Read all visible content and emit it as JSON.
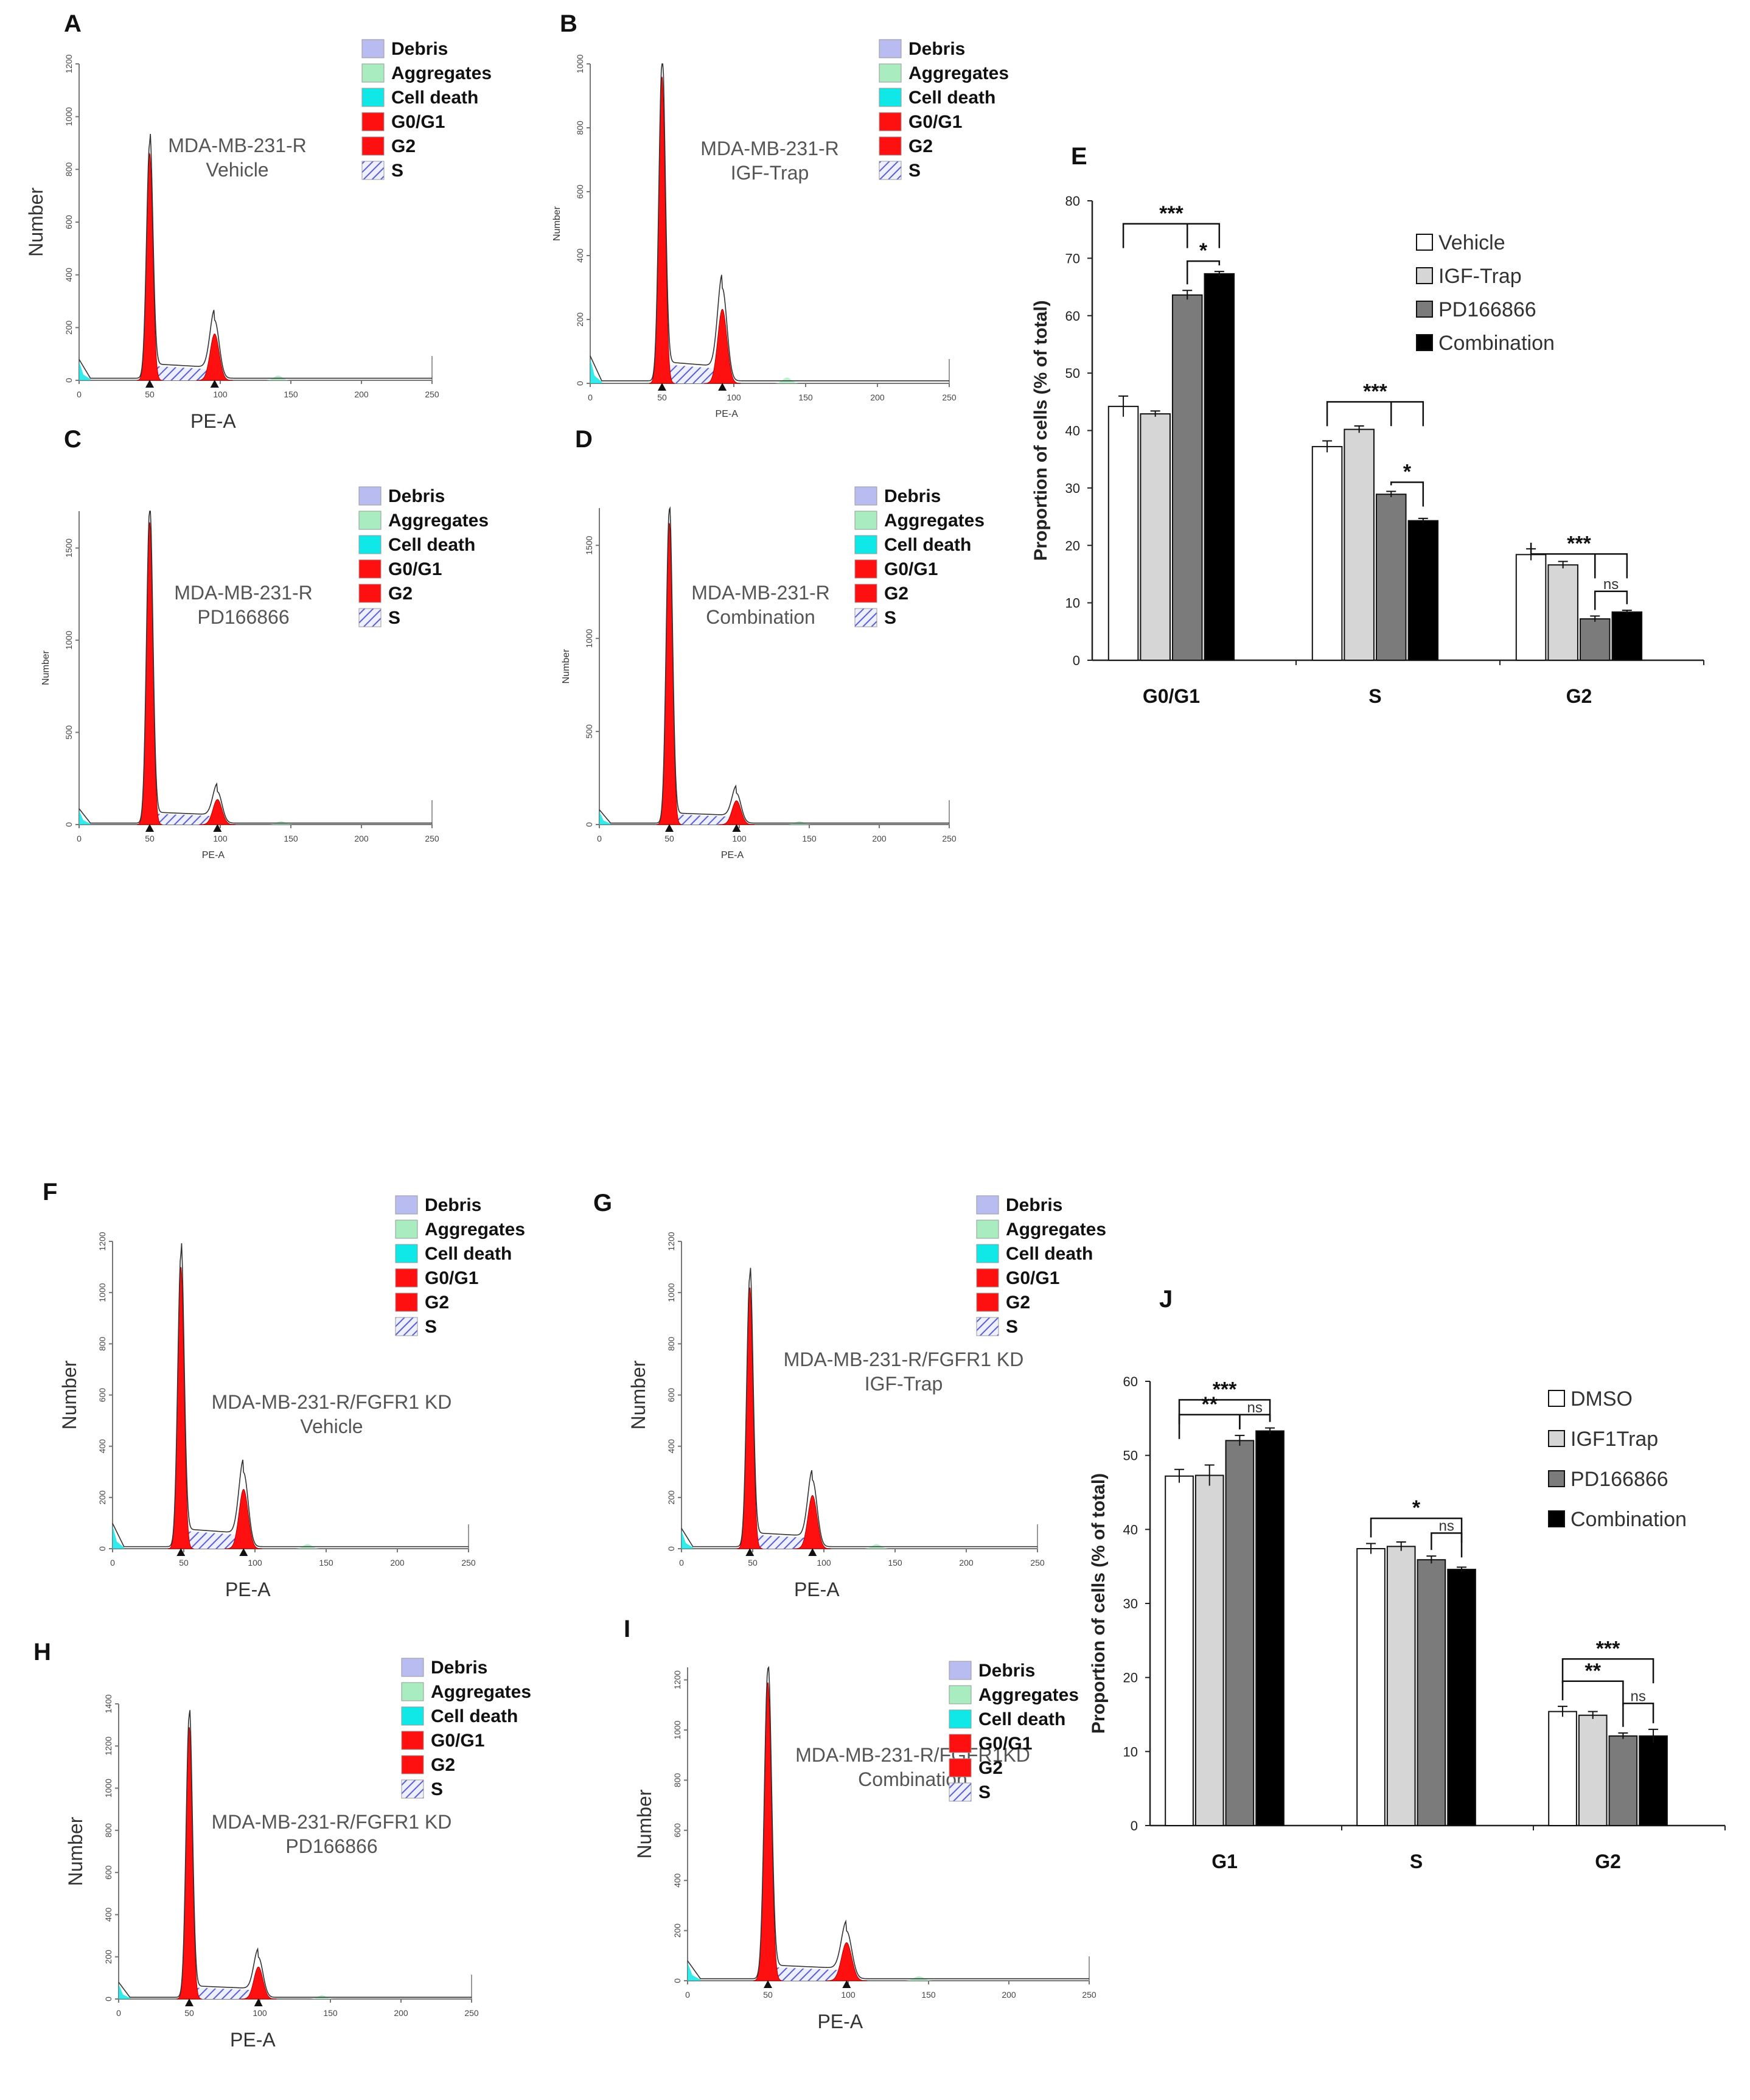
{
  "figure": {
    "colors": {
      "debris": "#b9bcf0",
      "aggregates": "#a8ecc0",
      "cell_death": "#10e8e8",
      "g0g1": "#ff1010",
      "g2": "#ff1010",
      "s_hatch": "#5b5fd6"
    }
  },
  "chart_data": [
    {
      "panel": "A",
      "type": "area",
      "sample": [
        "MDA-MB-231-R",
        "Vehicle"
      ],
      "xlabel": "PE-A",
      "ylabel": "Number",
      "xticks": [
        "0",
        "50",
        "100",
        "150",
        "200",
        "250"
      ],
      "yticks": [
        "0",
        "200",
        "400",
        "600",
        "800",
        "1000",
        "1200"
      ],
      "xlim": [
        0,
        250
      ],
      "ylim": [
        0,
        1200
      ],
      "peaks": {
        "g1_x": 50,
        "g1_y": 860,
        "g2_x": 96,
        "g2_y": 220,
        "s_level": 55
      },
      "legend": [
        "Debris",
        "Aggregates",
        "Cell death",
        "G0/G1",
        "G2",
        "S"
      ]
    },
    {
      "panel": "B",
      "type": "area",
      "sample": [
        "MDA-MB-231-R",
        "IGF-Trap"
      ],
      "xlabel": "PE-A",
      "ylabel": "Number",
      "xticks": [
        "0",
        "50",
        "100",
        "150",
        "200",
        "250"
      ],
      "yticks": [
        "0",
        "200",
        "400",
        "600",
        "800",
        "1000"
      ],
      "xlim": [
        0,
        250
      ],
      "ylim": [
        0,
        1000
      ],
      "peaks": {
        "g1_x": 50,
        "g1_y": 960,
        "g2_x": 92,
        "g2_y": 290,
        "s_level": 60
      },
      "legend": [
        "Debris",
        "Aggregates",
        "Cell death",
        "G0/G1",
        "G2",
        "S"
      ]
    },
    {
      "panel": "C",
      "type": "area",
      "sample": [
        "MDA-MB-231-R",
        "PD166866"
      ],
      "xlabel": "PE-A",
      "ylabel": "Number",
      "xticks": [
        "0",
        "50",
        "100",
        "150",
        "200",
        "250"
      ],
      "yticks": [
        "0",
        "500",
        "1000",
        "1500"
      ],
      "xlim": [
        0,
        250
      ],
      "ylim": [
        0,
        1700
      ],
      "peaks": {
        "g1_x": 50,
        "g1_y": 1640,
        "g2_x": 98,
        "g2_y": 170,
        "s_level": 60
      },
      "legend": [
        "Debris",
        "Aggregates",
        "Cell death",
        "G0/G1",
        "G2",
        "S"
      ]
    },
    {
      "panel": "D",
      "type": "area",
      "sample": [
        "MDA-MB-231-R",
        "Combination"
      ],
      "xlabel": "PE-A",
      "ylabel": "Number",
      "xticks": [
        "0",
        "50",
        "100",
        "150",
        "200",
        "250"
      ],
      "yticks": [
        "0",
        "500",
        "1000",
        "1500"
      ],
      "xlim": [
        0,
        250
      ],
      "ylim": [
        0,
        1700
      ],
      "peaks": {
        "g1_x": 50,
        "g1_y": 1620,
        "g2_x": 98,
        "g2_y": 160,
        "s_level": 55
      },
      "legend": [
        "Debris",
        "Aggregates",
        "Cell death",
        "G0/G1",
        "G2",
        "S"
      ]
    },
    {
      "panel": "E",
      "type": "bar",
      "categories": [
        "G0/G1",
        "S",
        "G2"
      ],
      "ylabel": "Proportion of cells (% of total)",
      "ylim": [
        0,
        80
      ],
      "yticks": [
        "0",
        "10",
        "20",
        "30",
        "40",
        "50",
        "60",
        "70",
        "80"
      ],
      "series": [
        {
          "name": "Vehicle",
          "values": [
            44.2,
            37.2,
            18.4
          ],
          "errors": [
            1.8,
            1.0,
            1.0
          ],
          "color": "#ffffff"
        },
        {
          "name": "IGF-Trap",
          "values": [
            42.9,
            40.2,
            16.6
          ],
          "errors": [
            0.5,
            0.6,
            0.6
          ],
          "color": "#d6d6d6"
        },
        {
          "name": "PD166866",
          "values": [
            63.6,
            28.9,
            7.2
          ],
          "errors": [
            0.8,
            0.5,
            0.5
          ],
          "color": "#7b7b7b"
        },
        {
          "name": "Combination",
          "values": [
            67.3,
            24.3,
            8.4
          ],
          "errors": [
            0.4,
            0.4,
            0.3
          ],
          "color": "#000000"
        }
      ],
      "significance": [
        "***",
        "*",
        "***",
        "*",
        "***",
        "ns"
      ]
    },
    {
      "panel": "F",
      "type": "area",
      "sample": [
        "MDA-MB-231-R/FGFR1 KD",
        "Vehicle"
      ],
      "xlabel": "PE-A",
      "ylabel": "Number",
      "xticks": [
        "0",
        "50",
        "100",
        "150",
        "200",
        "250"
      ],
      "yticks": [
        "0",
        "200",
        "400",
        "600",
        "800",
        "1000",
        "1200"
      ],
      "xlim": [
        0,
        250
      ],
      "ylim": [
        0,
        1200
      ],
      "peaks": {
        "g1_x": 48,
        "g1_y": 1100,
        "g2_x": 92,
        "g2_y": 290,
        "s_level": 70
      },
      "legend": [
        "Debris",
        "Aggregates",
        "Cell death",
        "G0/G1",
        "G2",
        "S"
      ]
    },
    {
      "panel": "G",
      "type": "area",
      "sample": [
        "MDA-MB-231-R/FGFR1 KD",
        "IGF-Trap"
      ],
      "xlabel": "PE-A",
      "ylabel": "Number",
      "xticks": [
        "0",
        "50",
        "100",
        "150",
        "200",
        "250"
      ],
      "yticks": [
        "0",
        "200",
        "400",
        "600",
        "800",
        "1000",
        "1200"
      ],
      "xlim": [
        0,
        250
      ],
      "ylim": [
        0,
        1200
      ],
      "peaks": {
        "g1_x": 48,
        "g1_y": 1020,
        "g2_x": 92,
        "g2_y": 260,
        "s_level": 55
      },
      "legend": [
        "Debris",
        "Aggregates",
        "Cell death",
        "G0/G1",
        "G2",
        "S"
      ]
    },
    {
      "panel": "H",
      "type": "area",
      "sample": [
        "MDA-MB-231-R/FGFR1 KD",
        "PD166866"
      ],
      "xlabel": "PE-A",
      "ylabel": "Number",
      "xticks": [
        "0",
        "50",
        "100",
        "150",
        "200",
        "250"
      ],
      "yticks": [
        "0",
        "200",
        "400",
        "600",
        "800",
        "1000",
        "1200",
        "1400"
      ],
      "xlim": [
        0,
        250
      ],
      "ylim": [
        0,
        1400
      ],
      "peaks": {
        "g1_x": 50,
        "g1_y": 1290,
        "g2_x": 99,
        "g2_y": 190,
        "s_level": 55
      },
      "legend": [
        "Debris",
        "Aggregates",
        "Cell death",
        "G0/G1",
        "G2",
        "S"
      ]
    },
    {
      "panel": "I",
      "type": "area",
      "sample": [
        "MDA-MB-231-R/FGFR1KD",
        "Combination"
      ],
      "xlabel": "PE-A",
      "ylabel": "Number",
      "xticks": [
        "0",
        "50",
        "100",
        "150",
        "200",
        "250"
      ],
      "yticks": [
        "0",
        "200",
        "400",
        "600",
        "800",
        "1000",
        "1200"
      ],
      "xlim": [
        0,
        250
      ],
      "ylim": [
        0,
        1250
      ],
      "peaks": {
        "g1_x": 50,
        "g1_y": 1190,
        "g2_x": 99,
        "g2_y": 190,
        "s_level": 55
      },
      "legend": [
        "Debris",
        "Aggregates",
        "Cell death",
        "G0/G1",
        "G2",
        "S"
      ]
    },
    {
      "panel": "J",
      "type": "bar",
      "categories": [
        "G1",
        "S",
        "G2"
      ],
      "ylabel": "Proportion of cells (% of total)",
      "ylim": [
        0,
        60
      ],
      "yticks": [
        "0",
        "10",
        "20",
        "30",
        "40",
        "50",
        "60"
      ],
      "series": [
        {
          "name": "DMSO",
          "values": [
            47.2,
            37.4,
            15.4
          ],
          "errors": [
            0.9,
            0.7,
            0.7
          ],
          "color": "#ffffff"
        },
        {
          "name": "IGF1Trap",
          "values": [
            47.3,
            37.7,
            14.9
          ],
          "errors": [
            1.4,
            0.6,
            0.5
          ],
          "color": "#d6d6d6"
        },
        {
          "name": "PD166866",
          "values": [
            52.0,
            35.9,
            12.1
          ],
          "errors": [
            0.7,
            0.5,
            0.4
          ],
          "color": "#7b7b7b"
        },
        {
          "name": "Combination",
          "values": [
            53.3,
            34.6,
            12.1
          ],
          "errors": [
            0.4,
            0.3,
            0.9
          ],
          "color": "#000000"
        }
      ],
      "significance": [
        "***",
        "**",
        "ns",
        "*",
        "ns",
        "***",
        "**",
        "ns"
      ]
    }
  ]
}
